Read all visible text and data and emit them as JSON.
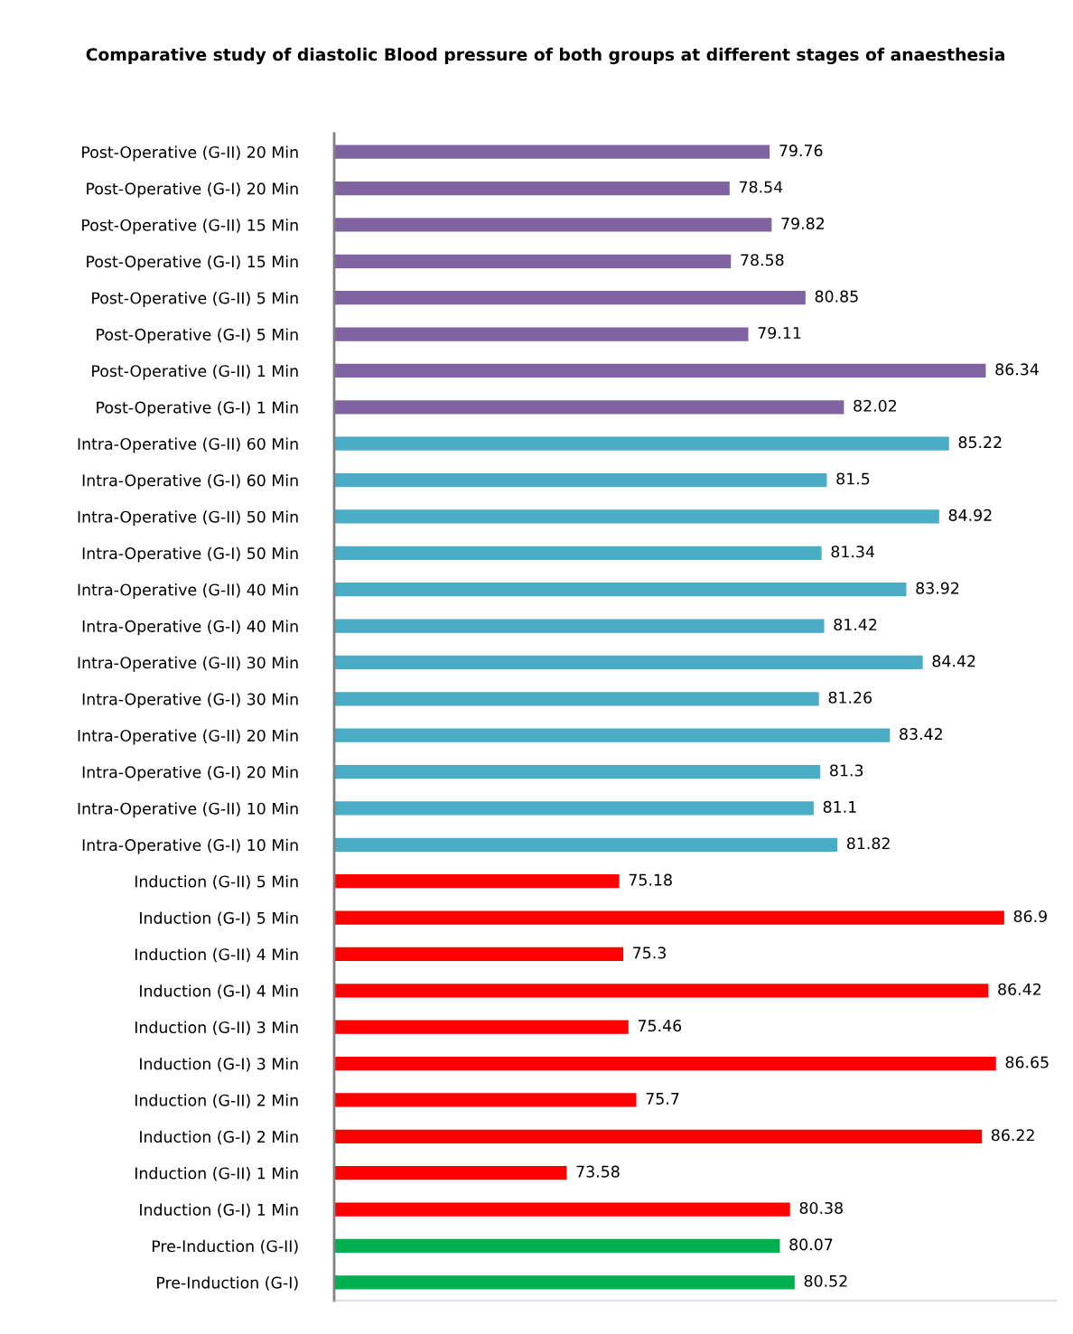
{
  "chart_data": {
    "type": "bar",
    "orientation": "horizontal",
    "title": "Comparative study of diastolic Blood pressure of both groups at different stages of anaesthesia",
    "categories": [
      "Post-Operative (G-II) 20 Min",
      "Post-Operative (G-I) 20 Min",
      "Post-Operative (G-II) 15 Min",
      "Post-Operative (G-I) 15 Min",
      "Post-Operative (G-II) 5 Min",
      "Post-Operative (G-I) 5 Min",
      "Post-Operative (G-II) 1 Min",
      "Post-Operative (G-I) 1 Min",
      "Intra-Operative (G-II) 60 Min",
      "Intra-Operative (G-I) 60 Min",
      "Intra-Operative (G-II) 50 Min",
      "Intra-Operative (G-I) 50 Min",
      "Intra-Operative (G-II) 40 Min",
      "Intra-Operative (G-I) 40 Min",
      "Intra-Operative (G-II) 30 Min",
      "Intra-Operative (G-I) 30 Min",
      "Intra-Operative (G-II) 20 Min",
      "Intra-Operative (G-I) 20 Min",
      "Intra-Operative (G-II) 10 Min",
      "Intra-Operative (G-I) 10 Min",
      "Induction (G-II) 5 Min",
      "Induction (G-I) 5 Min",
      "Induction (G-II) 4 Min",
      "Induction (G-I) 4 Min",
      "Induction (G-II) 3 Min",
      "Induction (G-I) 3 Min",
      "Induction (G-II) 2 Min",
      "Induction (G-I) 2 Min",
      "Induction (G-II) 1 Min",
      "Induction (G-I) 1 Min",
      "Pre-Induction (G-II)",
      "Pre-Induction (G-I)"
    ],
    "values": [
      79.76,
      78.54,
      79.82,
      78.58,
      80.85,
      79.11,
      86.34,
      82.02,
      85.22,
      81.5,
      84.92,
      81.34,
      83.92,
      81.42,
      84.42,
      81.26,
      83.42,
      81.3,
      81.1,
      81.82,
      75.18,
      86.9,
      75.3,
      86.42,
      75.46,
      86.65,
      75.7,
      86.22,
      73.58,
      80.38,
      80.07,
      80.52
    ],
    "colors": [
      "#8064a2",
      "#8064a2",
      "#8064a2",
      "#8064a2",
      "#8064a2",
      "#8064a2",
      "#8064a2",
      "#8064a2",
      "#4bacc6",
      "#4bacc6",
      "#4bacc6",
      "#4bacc6",
      "#4bacc6",
      "#4bacc6",
      "#4bacc6",
      "#4bacc6",
      "#4bacc6",
      "#4bacc6",
      "#4bacc6",
      "#4bacc6",
      "#ff0000",
      "#ff0000",
      "#ff0000",
      "#ff0000",
      "#ff0000",
      "#ff0000",
      "#ff0000",
      "#ff0000",
      "#ff0000",
      "#ff0000",
      "#00b050",
      "#00b050"
    ],
    "xlim": [
      66.5,
      88.5
    ],
    "data_labels": true,
    "grid": false,
    "legend": false
  }
}
